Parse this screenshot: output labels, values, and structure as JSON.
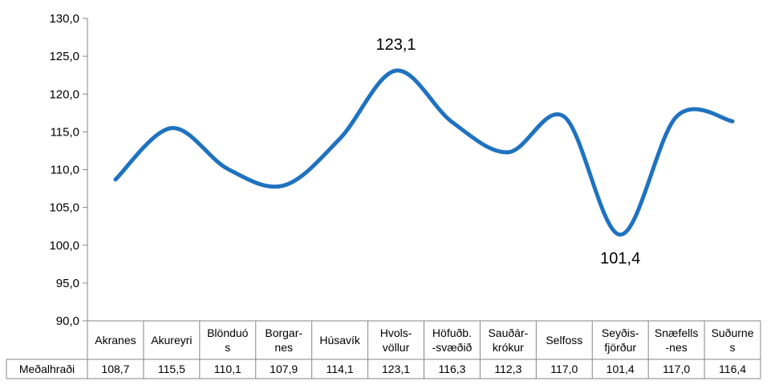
{
  "chart_data": {
    "type": "line",
    "title": "",
    "xlabel": "",
    "ylabel": "",
    "ylim": [
      90,
      130
    ],
    "ytick_step": 5,
    "y_tick_labels": [
      "90,0",
      "95,0",
      "100,0",
      "105,0",
      "110,0",
      "115,0",
      "120,0",
      "125,0",
      "130,0"
    ],
    "grid": false,
    "legend": "none",
    "smooth": true,
    "line_color": "#1f72c0",
    "categories": [
      [
        "Akranes"
      ],
      [
        "Akureyri"
      ],
      [
        "Blönduó",
        "s"
      ],
      [
        "Borgar-",
        "nes"
      ],
      [
        "Húsavík"
      ],
      [
        "Hvols-",
        "völlur"
      ],
      [
        "Höfuðb.",
        "-svæðið"
      ],
      [
        "Sauðár-",
        "krókur"
      ],
      [
        "Selfoss"
      ],
      [
        "Seyðis-",
        "fjörður"
      ],
      [
        "Snæfells",
        "-nes"
      ],
      [
        "Suðurne",
        "s"
      ]
    ],
    "series": [
      {
        "name": "Meðalhraði",
        "values": [
          108.7,
          115.5,
          110.1,
          107.9,
          114.1,
          123.1,
          116.3,
          112.3,
          117.0,
          101.4,
          117.0,
          116.4
        ],
        "value_labels": [
          "108,7",
          "115,5",
          "110,1",
          "107,9",
          "114,1",
          "123,1",
          "116,3",
          "112,3",
          "117,0",
          "101,4",
          "117,0",
          "116,4"
        ]
      }
    ],
    "annotations": [
      {
        "index": 5,
        "text": "123,1",
        "position": "above"
      },
      {
        "index": 9,
        "text": "101,4",
        "position": "below"
      }
    ],
    "data_table": true
  }
}
